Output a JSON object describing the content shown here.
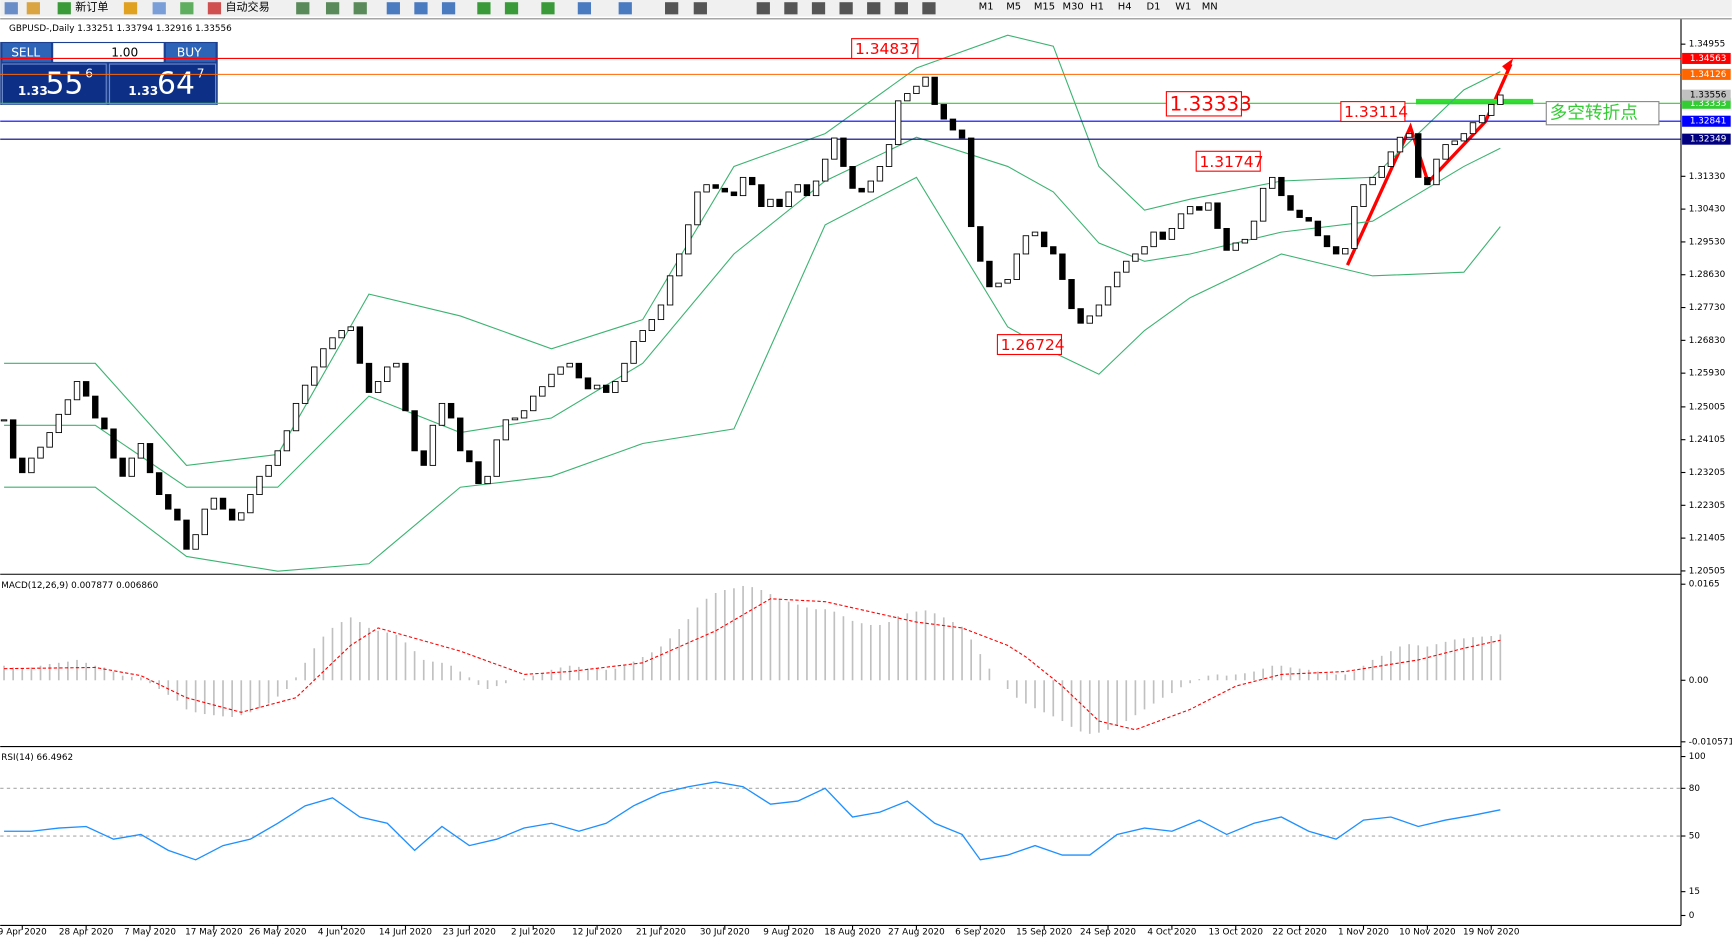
{
  "toolbar": {
    "new_order": "新订单",
    "auto_trade": "自动交易",
    "timeframes": [
      "M1",
      "M5",
      "M15",
      "M30",
      "H1",
      "H4",
      "D1",
      "W1",
      "MN"
    ]
  },
  "trade_panel": {
    "sell": "SELL",
    "buy": "BUY",
    "lots": "1.00",
    "sell_price": [
      "1.33",
      "55",
      "6"
    ],
    "buy_price": [
      "1.33",
      "64",
      "7"
    ]
  },
  "chart_data": [
    {
      "type": "candlestick",
      "title": "GBPUSD-,Daily  1.33251 1.33794 1.32916 1.33556",
      "xlim": [
        -0.42,
        183.8
      ],
      "ylim": [
        1.20444,
        1.35621
      ],
      "yticks": [
        1.34955,
        {
          "value": 1.3133,
          "label": "1.31330"
        },
        {
          "value": 1.3043,
          "label": "1.30430"
        },
        {
          "value": 1.2953,
          "label": "1.29530"
        },
        {
          "value": 1.2863,
          "label": "1.28630"
        },
        {
          "value": 1.2773,
          "label": "1.27730"
        },
        {
          "value": 1.2683,
          "label": "1.26830"
        },
        {
          "value": 1.2593,
          "label": "1.25930"
        },
        1.25005,
        1.24105,
        1.23205,
        1.22305,
        1.21405,
        1.20505
      ],
      "xticks": [
        {
          "value": 2,
          "label": "9 Apr 2020"
        },
        {
          "value": 9,
          "label": "28 Apr 2020"
        },
        {
          "value": 16,
          "label": "7 May 2020"
        },
        {
          "value": 23,
          "label": "17 May 2020"
        },
        {
          "value": 30,
          "label": "26 May 2020"
        },
        {
          "value": 37,
          "label": "4 Jun 2020"
        },
        {
          "value": 44,
          "label": "14 Jun 2020"
        },
        {
          "value": 51,
          "label": "23 Jun 2020"
        },
        {
          "value": 58,
          "label": "2 Jul 2020"
        },
        {
          "value": 65,
          "label": "12 Jul 2020"
        },
        {
          "value": 72,
          "label": "21 Jul 2020"
        },
        {
          "value": 79,
          "label": "30 Jul 2020"
        },
        {
          "value": 86,
          "label": "9 Aug 2020"
        },
        {
          "value": 93,
          "label": "18 Aug 2020"
        },
        {
          "value": 100,
          "label": "27 Aug 2020"
        },
        {
          "value": 107,
          "label": "6 Sep 2020"
        },
        {
          "value": 114,
          "label": "15 Sep 2020"
        },
        {
          "value": 121,
          "label": "24 Sep 2020"
        },
        {
          "value": 128,
          "label": "4 Oct 2020"
        },
        {
          "value": 135,
          "label": "13 Oct 2020"
        },
        {
          "value": 142,
          "label": "22 Oct 2020"
        },
        {
          "value": 149,
          "label": "1 Nov 2020"
        },
        {
          "value": 156,
          "label": "10 Nov 2020"
        },
        {
          "value": 163,
          "label": "19 Nov 2020"
        }
      ],
      "values": [
        1.2465,
        1.236,
        1.232,
        1.236,
        1.239,
        1.243,
        1.248,
        1.252,
        1.257,
        1.253,
        1.247,
        1.244,
        1.236,
        1.231,
        1.236,
        1.24,
        1.232,
        1.226,
        1.222,
        1.219,
        1.211,
        1.215,
        1.222,
        1.225,
        1.222,
        1.219,
        1.221,
        1.226,
        1.231,
        1.234,
        1.238,
        1.2435,
        1.251,
        1.256,
        1.261,
        1.266,
        1.269,
        1.271,
        1.272,
        1.262,
        1.254,
        1.257,
        1.261,
        1.262,
        1.249,
        1.238,
        1.234,
        1.245,
        1.251,
        1.247,
        1.238,
        1.235,
        1.229,
        1.231,
        1.241,
        1.2465,
        1.247,
        1.249,
        1.253,
        1.2556,
        1.259,
        1.261,
        1.262,
        1.258,
        1.255,
        1.256,
        1.254,
        1.257,
        1.262,
        1.268,
        1.271,
        1.274,
        1.278,
        1.286,
        1.292,
        1.3,
        1.309,
        1.311,
        1.31,
        1.309,
        1.308,
        1.313,
        1.311,
        1.305,
        1.307,
        1.305,
        1.309,
        1.311,
        1.308,
        1.312,
        1.318,
        1.3238,
        1.316,
        1.31,
        1.309,
        1.312,
        1.316,
        1.322,
        1.334,
        1.336,
        1.338,
        1.3405,
        1.333,
        1.329,
        1.326,
        1.3238,
        1.2995,
        1.29,
        1.283,
        1.284,
        1.285,
        1.292,
        1.297,
        1.298,
        1.294,
        1.292,
        1.285,
        1.277,
        1.273,
        1.275,
        1.278,
        1.283,
        1.287,
        1.29,
        1.292,
        1.294,
        1.298,
        1.296,
        1.299,
        1.303,
        1.305,
        1.304,
        1.306,
        1.299,
        1.293,
        1.295,
        1.296,
        1.301,
        1.31,
        1.313,
        1.308,
        1.304,
        1.302,
        1.301,
        1.297,
        1.294,
        1.292,
        1.2935,
        1.305,
        1.311,
        1.313,
        1.316,
        1.32,
        1.324,
        1.325,
        1.313,
        1.311,
        1.318,
        1.322,
        1.323,
        1.325,
        1.328,
        1.33,
        1.333,
        1.3356
      ],
      "color_up": "#ffffff",
      "color_down": "#000000",
      "bands": {
        "color": "#3cb371",
        "x": [
          0,
          10,
          20,
          30,
          40,
          50,
          60,
          70,
          80,
          90,
          100,
          110,
          115,
          120,
          125,
          130,
          140,
          150,
          160,
          164
        ],
        "upper": [
          1.262,
          1.262,
          1.234,
          1.237,
          1.281,
          1.275,
          1.266,
          1.274,
          1.316,
          1.325,
          1.343,
          1.352,
          1.349,
          1.316,
          1.304,
          1.307,
          1.312,
          1.313,
          1.337,
          1.342
        ],
        "middle": [
          1.245,
          1.245,
          1.228,
          1.228,
          1.253,
          1.243,
          1.247,
          1.262,
          1.292,
          1.312,
          1.324,
          1.316,
          1.309,
          1.295,
          1.29,
          1.292,
          1.298,
          1.301,
          1.316,
          1.321
        ],
        "lower": [
          1.228,
          1.228,
          1.209,
          1.205,
          1.207,
          1.228,
          1.231,
          1.24,
          1.244,
          1.3,
          1.313,
          1.272,
          1.265,
          1.259,
          1.271,
          1.28,
          1.292,
          1.286,
          1.287,
          1.2995
        ]
      },
      "levels": [
        {
          "value": 1.34563,
          "color": "#ff0000"
        },
        {
          "value": 1.34126,
          "color": "#ff6600"
        },
        {
          "value": 1.33333,
          "color": "#33cc33"
        },
        {
          "value": 1.32841,
          "color": "#0000ff"
        },
        {
          "value": 1.32349,
          "color": "#000080"
        }
      ],
      "bid": 1.33556,
      "annotations": [
        1.34837,
        1.33333,
        1.33114,
        1.31747,
        1.26724
      ],
      "note": "多空转折点"
    },
    {
      "type": "macd",
      "title": "MACD(12,26,9) 0.007877 0.006860",
      "ylim": [
        -0.01119,
        0.01802
      ],
      "yticks": [
        0.0165,
        {
          "value": 0,
          "label": "0.00"
        },
        -0.010571
      ],
      "values": [
        0.0025,
        0.0022,
        0.002,
        0.0022,
        0.0025,
        0.0028,
        0.003,
        0.0032,
        0.0035,
        0.003,
        0.0025,
        0.0022,
        0.0015,
        0.0008,
        0.0006,
        0.0005,
        -0.0005,
        -0.0015,
        -0.0025,
        -0.0035,
        -0.005,
        -0.0055,
        -0.0058,
        -0.006,
        -0.0062,
        -0.0063,
        -0.006,
        -0.0055,
        -0.0048,
        -0.004,
        -0.0028,
        -0.0015,
        0.0005,
        0.003,
        0.0055,
        0.0075,
        0.009,
        0.01,
        0.0108,
        0.01,
        0.009,
        0.0085,
        0.0082,
        0.0078,
        0.0065,
        0.005,
        0.0035,
        0.0032,
        0.003,
        0.0025,
        0.0015,
        0.0005,
        -0.0008,
        -0.0015,
        -0.001,
        -0.0005,
        0,
        0.0003,
        0.0008,
        0.0012,
        0.0018,
        0.0022,
        0.0025,
        0.0023,
        0.002,
        0.002,
        0.0018,
        0.002,
        0.0025,
        0.0032,
        0.004,
        0.0048,
        0.0058,
        0.0072,
        0.0088,
        0.0105,
        0.0125,
        0.014,
        0.015,
        0.0155,
        0.0158,
        0.0162,
        0.016,
        0.0155,
        0.0148,
        0.014,
        0.0135,
        0.013,
        0.0125,
        0.0122,
        0.0122,
        0.0118,
        0.011,
        0.0102,
        0.0098,
        0.0095,
        0.0095,
        0.01,
        0.011,
        0.0115,
        0.0118,
        0.012,
        0.0115,
        0.0108,
        0.01,
        0.0092,
        0.007,
        0.0045,
        0.002,
        0,
        -0.0015,
        -0.003,
        -0.004,
        -0.0048,
        -0.0055,
        -0.0062,
        -0.007,
        -0.008,
        -0.0088,
        -0.0092,
        -0.009,
        -0.0085,
        -0.0078,
        -0.007,
        -0.006,
        -0.005,
        -0.004,
        -0.003,
        -0.0022,
        -0.0012,
        -0.0005,
        0.0002,
        0.0008,
        0.001,
        0.0008,
        0.001,
        0.0012,
        0.0015,
        0.002,
        0.0025,
        0.0025,
        0.0022,
        0.002,
        0.0018,
        0.0015,
        0.0012,
        0.001,
        0.001,
        0.0015,
        0.0025,
        0.0035,
        0.0042,
        0.005,
        0.0058,
        0.0062,
        0.006,
        0.0058,
        0.0062,
        0.0066,
        0.007,
        0.0072,
        0.0074,
        0.0075,
        0.0076,
        0.007877
      ],
      "color": "#c0c0c0",
      "signal": {
        "color": "#ff0000",
        "x": [
          0,
          10,
          15,
          20,
          26,
          32,
          38,
          41,
          50,
          57,
          62,
          70,
          78,
          84,
          90,
          100,
          105,
          110,
          112,
          116,
          120,
          124,
          130,
          135,
          140,
          147,
          155,
          160,
          164
        ],
        "values": [
          0.002,
          0.0022,
          0.0008,
          -0.003,
          -0.0055,
          -0.003,
          0.006,
          0.009,
          0.005,
          0.001,
          0.0015,
          0.003,
          0.0085,
          0.014,
          0.0135,
          0.01,
          0.009,
          0.006,
          0.004,
          -0.001,
          -0.007,
          -0.0085,
          -0.005,
          -0.001,
          0.001,
          0.0015,
          0.0035,
          0.0055,
          0.00686
        ]
      }
    },
    {
      "type": "line",
      "title": "RSI(14) 66.4962",
      "ylim": [
        -6.25,
        105.6
      ],
      "yticks": [
        100,
        80,
        50,
        15,
        0
      ],
      "levels": [
        80,
        50
      ],
      "color": "#1e90ff",
      "x": [
        0,
        3,
        6,
        9,
        12,
        15,
        18,
        21,
        24,
        27,
        30,
        33,
        36,
        39,
        42,
        45,
        48,
        51,
        54,
        57,
        60,
        63,
        66,
        69,
        72,
        75,
        78,
        81,
        84,
        87,
        90,
        93,
        96,
        99,
        102,
        105,
        107,
        110,
        113,
        116,
        119,
        122,
        125,
        128,
        131,
        134,
        137,
        140,
        143,
        146,
        149,
        152,
        155,
        158,
        161,
        164
      ],
      "values": [
        53,
        53,
        55,
        56,
        48,
        51,
        41,
        35,
        44,
        48,
        58,
        69,
        74,
        62,
        58,
        41,
        56,
        44,
        48,
        55,
        58,
        53,
        58,
        69,
        77,
        81,
        84,
        81,
        70,
        72,
        80,
        62,
        65,
        72,
        58,
        51,
        35,
        38,
        44,
        38,
        38,
        51,
        55,
        53,
        60,
        51,
        58,
        62,
        53,
        48,
        60,
        62,
        56,
        60,
        63,
        66.4962
      ]
    }
  ]
}
